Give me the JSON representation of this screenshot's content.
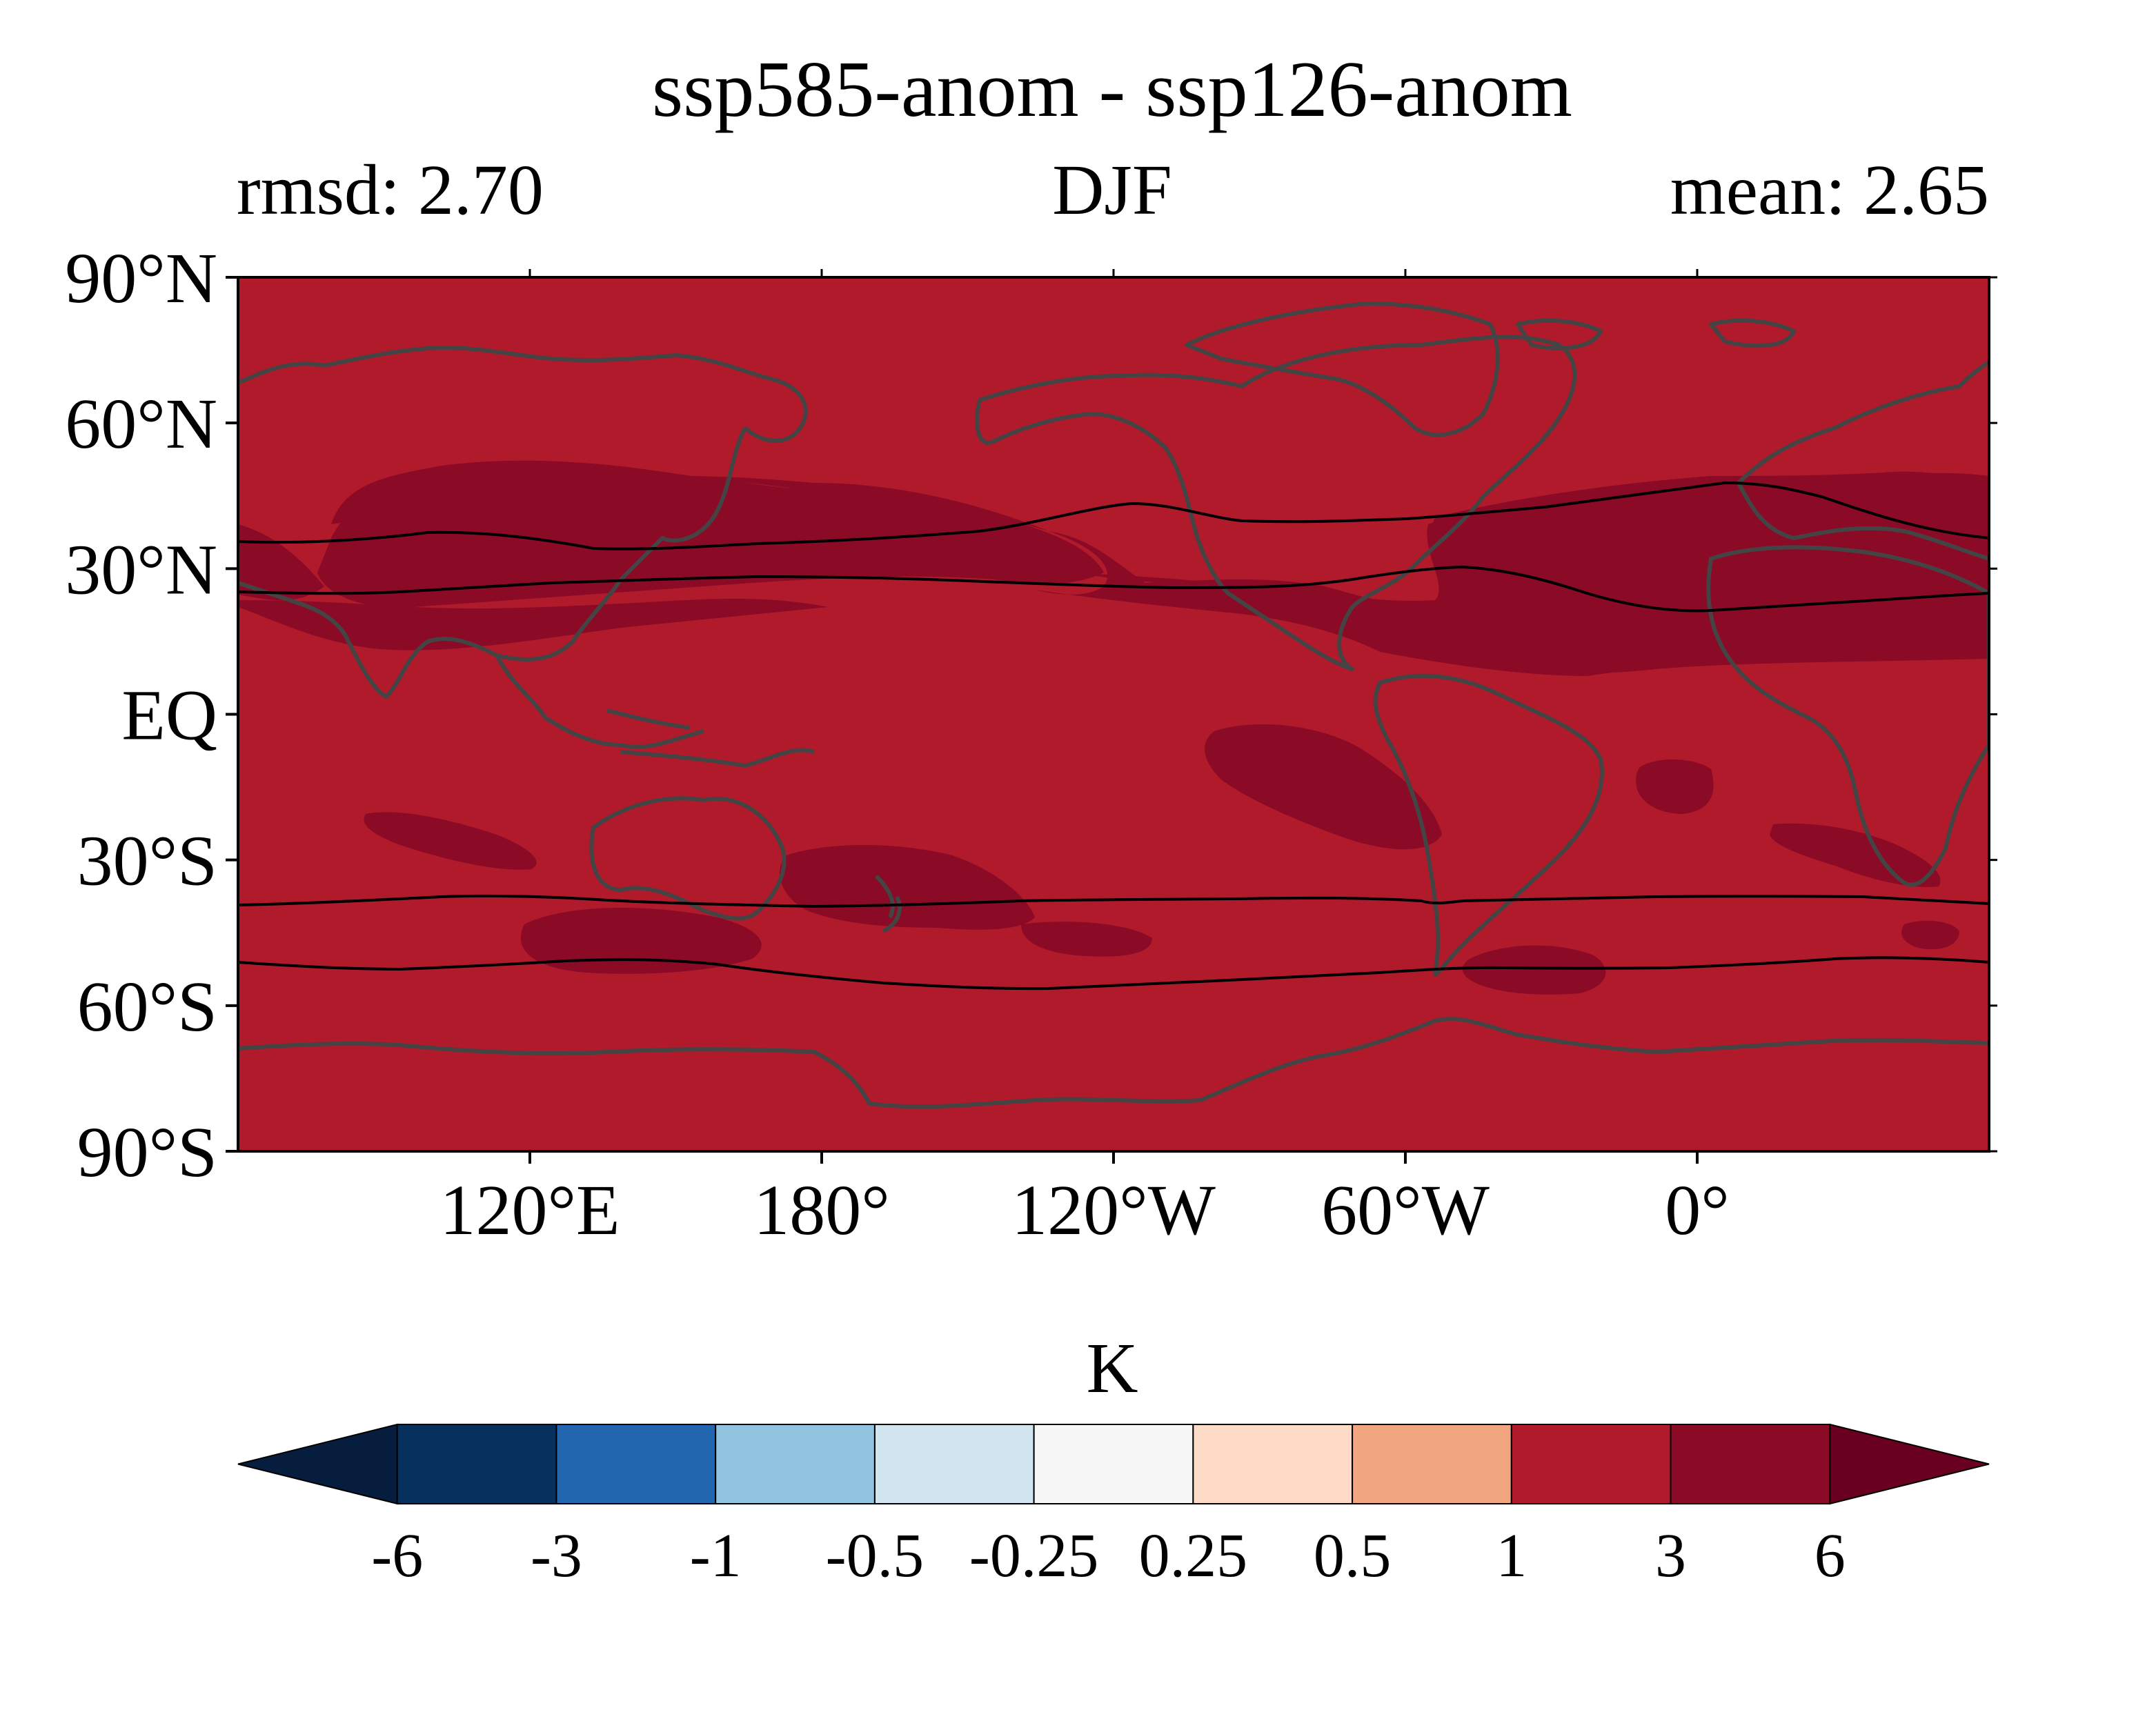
{
  "header": {
    "title": "ssp585-anom - ssp126-anom",
    "left_stat": "rmsd: 2.70",
    "season": "DJF",
    "right_stat": "mean: 2.65"
  },
  "map": {
    "projection": "PlateCarree, central longitude 180°",
    "lat_ticks": [
      {
        "value": 90,
        "label": "90°N"
      },
      {
        "value": 60,
        "label": "60°N"
      },
      {
        "value": 30,
        "label": "30°N"
      },
      {
        "value": 0,
        "label": "EQ"
      },
      {
        "value": -30,
        "label": "30°S"
      },
      {
        "value": -60,
        "label": "60°S"
      },
      {
        "value": -90,
        "label": "90°S"
      }
    ],
    "lon_ticks": [
      {
        "value": 120,
        "label": "120°E"
      },
      {
        "value": 180,
        "label": "180°"
      },
      {
        "value": 240,
        "label": "120°W"
      },
      {
        "value": 300,
        "label": "60°W"
      },
      {
        "value": 360,
        "label": "0°"
      }
    ],
    "background_level": "1 to 3 K",
    "highlight_level": "3 to 6 K",
    "colors": {
      "background": "#b11a2b",
      "highlight": "#8b0a26",
      "coastline": "#444444",
      "jet_lines": "#000000"
    }
  },
  "colorbar": {
    "label": "K",
    "tick_labels": [
      "-6",
      "-3",
      "-1",
      "-0.5",
      "-0.25",
      "0.25",
      "0.5",
      "1",
      "3",
      "6"
    ],
    "under_color": "#061d3d",
    "over_color": "#69001f",
    "colors": [
      "#08305f",
      "#2266b0",
      "#92c3df",
      "#d1e5f0",
      "#f7f7f7",
      "#fddbc7",
      "#f2a67f",
      "#b11a2b",
      "#8b0a26"
    ]
  }
}
